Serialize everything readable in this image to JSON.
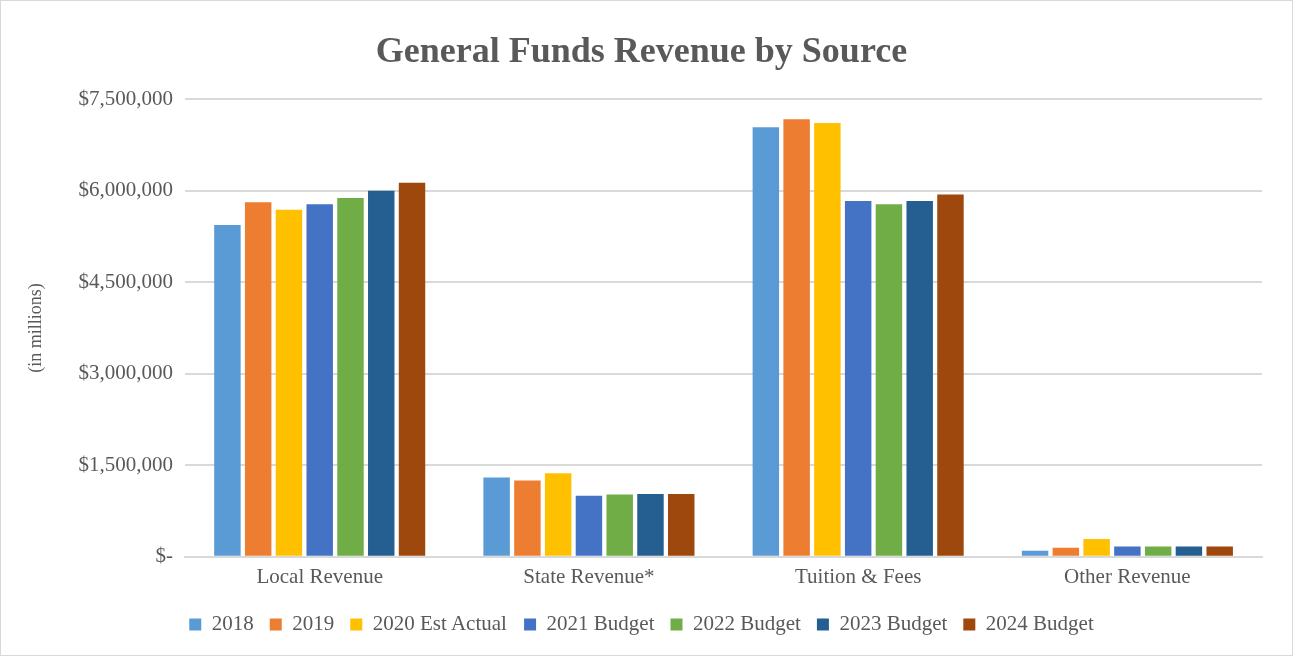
{
  "chart_data": {
    "type": "bar",
    "title": "General Funds Revenue by Source",
    "ylabel": "(in millions)",
    "categories": [
      "Local Revenue",
      "State Revenue*",
      "Tuition & Fees",
      "Other Revenue"
    ],
    "series": [
      {
        "name": "2018",
        "color": "#5b9bd5",
        "values": [
          5440000,
          1300000,
          7040000,
          100000
        ]
      },
      {
        "name": "2019",
        "color": "#ed7d31",
        "values": [
          5810000,
          1250000,
          7170000,
          150000
        ]
      },
      {
        "name": "2020 Est Actual",
        "color": "#ffc000",
        "values": [
          5690000,
          1370000,
          7110000,
          290000
        ]
      },
      {
        "name": "2021 Budget",
        "color": "#4472c4",
        "values": [
          5780000,
          1000000,
          5830000,
          170000
        ]
      },
      {
        "name": "2022 Budget",
        "color": "#70ad47",
        "values": [
          5880000,
          1020000,
          5780000,
          170000
        ]
      },
      {
        "name": "2023 Budget",
        "color": "#255e91",
        "values": [
          6000000,
          1030000,
          5830000,
          170000
        ]
      },
      {
        "name": "2024 Budget",
        "color": "#9e480e",
        "values": [
          6130000,
          1030000,
          5940000,
          170000
        ]
      }
    ],
    "ylim": [
      0,
      7500000
    ],
    "yticks": [
      {
        "value": 0,
        "label": "$-"
      },
      {
        "value": 1500000,
        "label": "$1,500,000"
      },
      {
        "value": 3000000,
        "label": "$3,000,000"
      },
      {
        "value": 4500000,
        "label": "$4,500,000"
      },
      {
        "value": 6000000,
        "label": "$6,000,000"
      },
      {
        "value": 7500000,
        "label": "$7,500,000"
      }
    ],
    "grid": "y",
    "legend": "bottom"
  }
}
